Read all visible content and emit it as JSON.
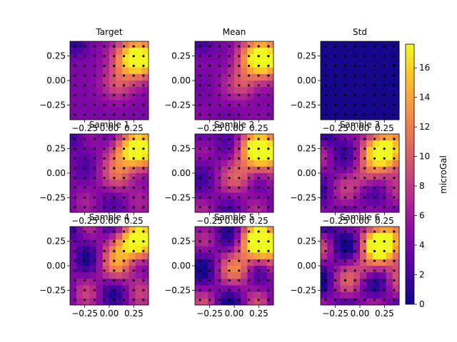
{
  "colorbar": {
    "label": "microGal",
    "ticks": [
      0,
      2,
      4,
      6,
      8,
      10,
      12,
      14,
      16
    ],
    "range": [
      0,
      17.6
    ],
    "colormap": "plasma"
  },
  "axes_ticks": {
    "x": [
      "−0.25",
      "0.00",
      "0.25"
    ],
    "y": [
      "0.25",
      "0.00",
      "−0.25"
    ]
  },
  "chart_data": [
    {
      "type": "heatmap",
      "title": "Target",
      "field": "anomaly",
      "x_tick_labels": [
        "−0.25",
        "0.00",
        "0.25"
      ],
      "y_tick_labels": [
        "0.25",
        "0.00",
        "−0.25"
      ],
      "xlim": [
        -0.4,
        0.4
      ],
      "ylim": [
        -0.4,
        0.4
      ],
      "points": "8x8 grid"
    },
    {
      "type": "heatmap",
      "title": "Mean",
      "field": "anomaly",
      "x_tick_labels": [
        "−0.25",
        "0.00",
        "0.25"
      ],
      "y_tick_labels": [
        "0.25",
        "0.00",
        "−0.25"
      ],
      "xlim": [
        -0.4,
        0.4
      ],
      "ylim": [
        -0.4,
        0.4
      ],
      "points": "8x8 grid"
    },
    {
      "type": "heatmap",
      "title": "Std",
      "field": "std",
      "x_tick_labels": [
        "−0.25",
        "0.00",
        "0.25"
      ],
      "y_tick_labels": [
        "0.25",
        "0.00",
        "−0.25"
      ],
      "xlim": [
        -0.4,
        0.4
      ],
      "ylim": [
        -0.4,
        0.4
      ],
      "points": "8x8 grid"
    },
    {
      "type": "heatmap",
      "title": "Sample 1",
      "field": "anomaly",
      "x_tick_labels": [
        "−0.25",
        "0.00",
        "0.25"
      ],
      "y_tick_labels": [
        "0.25",
        "0.00",
        "−0.25"
      ],
      "xlim": [
        -0.4,
        0.4
      ],
      "ylim": [
        -0.4,
        0.4
      ],
      "points": "8x8 grid"
    },
    {
      "type": "heatmap",
      "title": "Sample 2",
      "field": "anomaly",
      "x_tick_labels": [
        "−0.25",
        "0.00",
        "0.25"
      ],
      "y_tick_labels": [
        "0.25",
        "0.00",
        "−0.25"
      ],
      "xlim": [
        -0.4,
        0.4
      ],
      "ylim": [
        -0.4,
        0.4
      ],
      "points": "8x8 grid"
    },
    {
      "type": "heatmap",
      "title": "Sample 3",
      "field": "anomaly",
      "x_tick_labels": [
        "−0.25",
        "0.00",
        "0.25"
      ],
      "y_tick_labels": [
        "0.25",
        "0.00",
        "−0.25"
      ],
      "xlim": [
        -0.4,
        0.4
      ],
      "ylim": [
        -0.4,
        0.4
      ],
      "points": "8x8 grid"
    },
    {
      "type": "heatmap",
      "title": "Sample 4",
      "field": "anomaly",
      "x_tick_labels": [
        "−0.25",
        "0.00",
        "0.25"
      ],
      "y_tick_labels": [
        "0.25",
        "0.00",
        "−0.25"
      ],
      "xlim": [
        -0.4,
        0.4
      ],
      "ylim": [
        -0.4,
        0.4
      ],
      "points": "8x8 grid"
    },
    {
      "type": "heatmap",
      "title": "Sample 5",
      "field": "anomaly",
      "x_tick_labels": [
        "−0.25",
        "0.00",
        "0.25"
      ],
      "y_tick_labels": [
        "0.25",
        "0.00",
        "−0.25"
      ],
      "xlim": [
        -0.4,
        0.4
      ],
      "ylim": [
        -0.4,
        0.4
      ],
      "points": "8x8 grid"
    },
    {
      "type": "heatmap",
      "title": "Sample 6",
      "field": "anomaly",
      "x_tick_labels": [
        "−0.25",
        "0.00",
        "0.25"
      ],
      "y_tick_labels": [
        "0.25",
        "0.00",
        "−0.25"
      ],
      "xlim": [
        -0.4,
        0.4
      ],
      "ylim": [
        -0.4,
        0.4
      ],
      "points": "8x8 grid"
    }
  ]
}
